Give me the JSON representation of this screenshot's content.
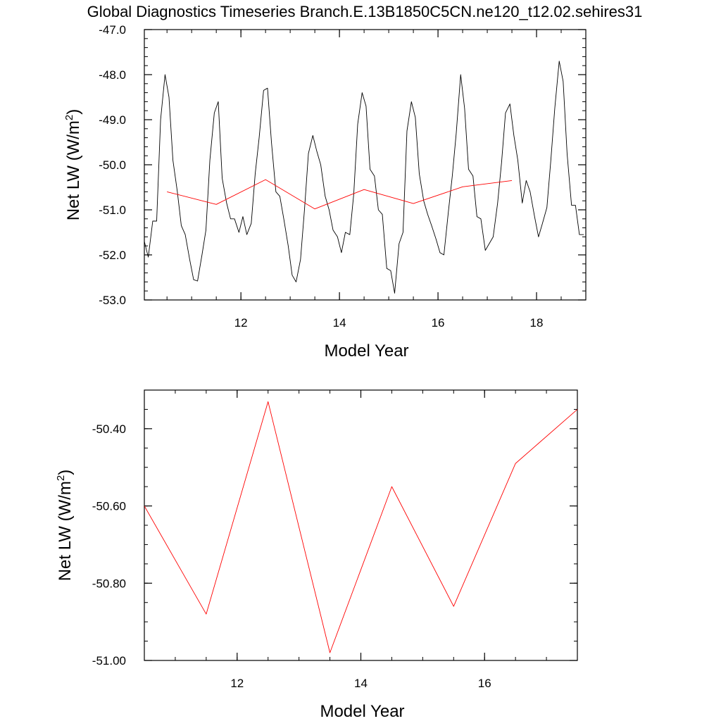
{
  "title": "Global Diagnostics Timeseries Branch.E.13B1850C5CN.ne120_t12.02.sehires31",
  "colors": {
    "monthly": "#000000",
    "annual": "#ff0000",
    "axis": "#000000"
  },
  "chart_data": [
    {
      "type": "line",
      "xlabel": "Model Year",
      "ylabel": "Net LW (W/m2)",
      "xlim": [
        10.04,
        19.0
      ],
      "ylim": [
        -53.0,
        -47.0
      ],
      "xticks": [
        12,
        14,
        16,
        18
      ],
      "xtick_labels": [
        "12",
        "14",
        "16",
        "18"
      ],
      "yticks": [
        -53,
        -52,
        -51,
        -50,
        -49,
        -48,
        -47
      ],
      "ytick_labels": [
        "-53.0",
        "-52.0",
        "-51.0",
        "-50.0",
        "-49.0",
        "-48.0",
        "-47.0"
      ],
      "series": [
        {
          "color": "#000000",
          "x": [
            10.04,
            10.12,
            10.21,
            10.29,
            10.37,
            10.46,
            10.54,
            10.62,
            10.71,
            10.79,
            10.87,
            10.96,
            11.04,
            11.12,
            11.21,
            11.29,
            11.37,
            11.46,
            11.54,
            11.62,
            11.71,
            11.79,
            11.87,
            11.96,
            12.04,
            12.12,
            12.21,
            12.29,
            12.37,
            12.46,
            12.54,
            12.62,
            12.71,
            12.79,
            12.87,
            12.96,
            13.04,
            13.12,
            13.21,
            13.29,
            13.37,
            13.46,
            13.54,
            13.62,
            13.71,
            13.79,
            13.87,
            13.96,
            14.04,
            14.12,
            14.21,
            14.29,
            14.37,
            14.46,
            14.54,
            14.62,
            14.71,
            14.79,
            14.87,
            14.96,
            15.04,
            15.12,
            15.21,
            15.29,
            15.37,
            15.46,
            15.54,
            15.62,
            15.71,
            15.79,
            15.87,
            15.96,
            16.04,
            16.12,
            16.21,
            16.29,
            16.37,
            16.46,
            16.54,
            16.62,
            16.71,
            16.79,
            16.87,
            16.96,
            17.04,
            17.12,
            17.21,
            17.29,
            17.37,
            17.46,
            17.54,
            17.62,
            17.71,
            17.79,
            17.87,
            17.96,
            18.04,
            18.12,
            18.21,
            18.29,
            18.37,
            18.46,
            18.54,
            18.62,
            18.71,
            18.79,
            18.87,
            18.96
          ],
          "y": [
            -51.7,
            -52.05,
            -51.25,
            -51.25,
            -49.0,
            -48.0,
            -48.5,
            -49.9,
            -50.6,
            -51.35,
            -51.55,
            -52.1,
            -52.55,
            -52.58,
            -52.0,
            -51.45,
            -49.9,
            -48.85,
            -48.6,
            -50.3,
            -50.85,
            -51.2,
            -51.2,
            -51.5,
            -51.15,
            -51.55,
            -51.3,
            -50.2,
            -49.4,
            -48.35,
            -48.3,
            -49.5,
            -50.6,
            -50.7,
            -51.2,
            -51.8,
            -52.45,
            -52.6,
            -52.1,
            -51.0,
            -49.75,
            -49.35,
            -49.7,
            -50.0,
            -50.7,
            -51.0,
            -51.45,
            -51.6,
            -51.95,
            -51.5,
            -51.55,
            -50.65,
            -49.1,
            -48.4,
            -48.7,
            -50.1,
            -50.25,
            -51.0,
            -51.1,
            -52.3,
            -52.35,
            -52.85,
            -51.75,
            -51.5,
            -49.25,
            -48.6,
            -48.95,
            -50.2,
            -50.8,
            -51.1,
            -51.35,
            -51.65,
            -51.95,
            -52.0,
            -51.05,
            -50.25,
            -49.3,
            -48.0,
            -48.75,
            -50.1,
            -50.25,
            -51.15,
            -51.2,
            -51.9,
            -51.75,
            -51.6,
            -50.85,
            -49.95,
            -48.85,
            -48.65,
            -49.35,
            -49.9,
            -50.85,
            -50.35,
            -50.6,
            -51.15,
            -51.6,
            -51.3,
            -50.95,
            -49.9,
            -48.75,
            -47.7,
            -48.15,
            -49.75,
            -50.9,
            -50.9,
            -51.55,
            -51.55
          ]
        },
        {
          "color": "#ff0000",
          "x": [
            10.5,
            11.5,
            12.5,
            13.5,
            14.5,
            15.5,
            16.5,
            17.5
          ],
          "y": [
            -50.6,
            -50.88,
            -50.33,
            -50.98,
            -50.55,
            -50.86,
            -50.49,
            -50.35
          ]
        }
      ]
    },
    {
      "type": "line",
      "xlabel": "Model Year",
      "ylabel": "Net LW (W/m2)",
      "xlim": [
        10.5,
        17.5
      ],
      "ylim": [
        -51.0,
        -50.3
      ],
      "xticks": [
        12,
        14,
        16
      ],
      "xtick_labels": [
        "12",
        "14",
        "16"
      ],
      "yticks": [
        -51.0,
        -50.8,
        -50.6,
        -50.4
      ],
      "ytick_labels": [
        "-51.00",
        "-50.80",
        "-50.60",
        "-50.40"
      ],
      "series": [
        {
          "color": "#ff0000",
          "x": [
            10.5,
            11.5,
            12.5,
            13.5,
            14.5,
            15.5,
            16.5,
            17.5
          ],
          "y": [
            -50.6,
            -50.88,
            -50.33,
            -50.98,
            -50.55,
            -50.86,
            -50.49,
            -50.35
          ]
        }
      ]
    }
  ]
}
